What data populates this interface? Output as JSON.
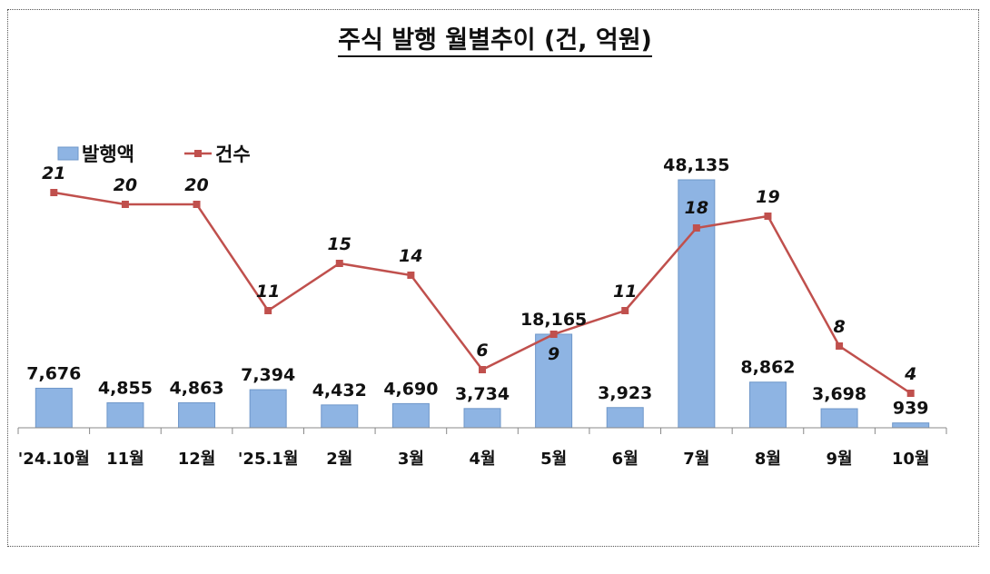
{
  "chart_data": {
    "type": "bar+line",
    "title": "주식 발행 월별추이 (건, 억원)",
    "categories": [
      "'24.10월",
      "11월",
      "12월",
      "'25.1월",
      "2월",
      "3월",
      "4월",
      "5월",
      "6월",
      "7월",
      "8월",
      "9월",
      "10월"
    ],
    "series": [
      {
        "name": "발행액",
        "type": "bar",
        "color": "#8EB4E3",
        "values": [
          7676,
          4855,
          4863,
          7394,
          4432,
          4690,
          3734,
          18165,
          3923,
          48135,
          8862,
          3698,
          939
        ],
        "labels": [
          "7,676",
          "4,855",
          "4,863",
          "7,394",
          "4,432",
          "4,690",
          "3,734",
          "18,165",
          "3,923",
          "48,135",
          "8,862",
          "3,698",
          "939"
        ]
      },
      {
        "name": "건수",
        "type": "line",
        "color": "#C0504D",
        "values": [
          21,
          20,
          20,
          11,
          15,
          14,
          6,
          9,
          11,
          18,
          19,
          8,
          4
        ]
      }
    ],
    "legend": "top-left",
    "grid": false
  }
}
